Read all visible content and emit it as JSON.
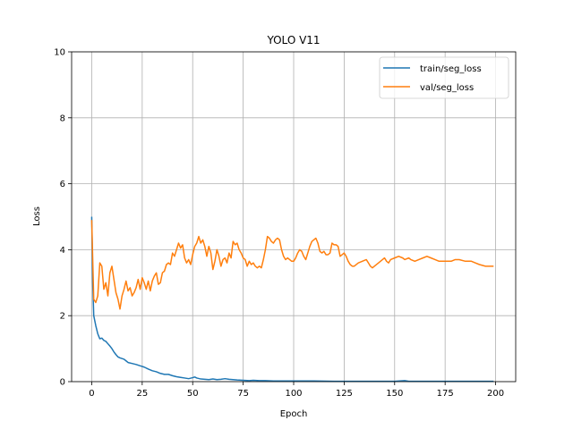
{
  "chart_data": {
    "type": "line",
    "title": "YOLO V11",
    "xlabel": "Epoch",
    "ylabel": "Loss",
    "xlim": [
      -9.95,
      209.95
    ],
    "ylim": [
      0,
      10
    ],
    "xticks": [
      0,
      25,
      50,
      75,
      100,
      125,
      150,
      175,
      200
    ],
    "yticks": [
      0,
      2,
      4,
      6,
      8,
      10
    ],
    "grid": true,
    "legend": "top-right",
    "series": [
      {
        "name": "train/seg_loss",
        "color": "#1f77b4",
        "points": [
          [
            0,
            5.0
          ],
          [
            0.5,
            3.0
          ],
          [
            1,
            2.0
          ],
          [
            2,
            1.7
          ],
          [
            3,
            1.45
          ],
          [
            4,
            1.3
          ],
          [
            5,
            1.32
          ],
          [
            6,
            1.25
          ],
          [
            7,
            1.22
          ],
          [
            8,
            1.15
          ],
          [
            9,
            1.08
          ],
          [
            10,
            1.0
          ],
          [
            11,
            0.9
          ],
          [
            12,
            0.82
          ],
          [
            13,
            0.75
          ],
          [
            14,
            0.72
          ],
          [
            15,
            0.7
          ],
          [
            16,
            0.68
          ],
          [
            17,
            0.63
          ],
          [
            18,
            0.58
          ],
          [
            20,
            0.55
          ],
          [
            22,
            0.52
          ],
          [
            24,
            0.48
          ],
          [
            26,
            0.44
          ],
          [
            28,
            0.38
          ],
          [
            30,
            0.33
          ],
          [
            32,
            0.3
          ],
          [
            34,
            0.25
          ],
          [
            36,
            0.22
          ],
          [
            38,
            0.22
          ],
          [
            40,
            0.18
          ],
          [
            42,
            0.15
          ],
          [
            44,
            0.13
          ],
          [
            46,
            0.11
          ],
          [
            48,
            0.09
          ],
          [
            50,
            0.12
          ],
          [
            51,
            0.14
          ],
          [
            52,
            0.11
          ],
          [
            54,
            0.08
          ],
          [
            56,
            0.07
          ],
          [
            58,
            0.06
          ],
          [
            60,
            0.08
          ],
          [
            62,
            0.06
          ],
          [
            64,
            0.07
          ],
          [
            66,
            0.09
          ],
          [
            68,
            0.07
          ],
          [
            70,
            0.06
          ],
          [
            72,
            0.05
          ],
          [
            75,
            0.04
          ],
          [
            78,
            0.03
          ],
          [
            80,
            0.04
          ],
          [
            83,
            0.03
          ],
          [
            86,
            0.03
          ],
          [
            90,
            0.02
          ],
          [
            95,
            0.02
          ],
          [
            100,
            0.02
          ],
          [
            110,
            0.02
          ],
          [
            120,
            0.01
          ],
          [
            130,
            0.01
          ],
          [
            140,
            0.01
          ],
          [
            150,
            0.01
          ],
          [
            155,
            0.03
          ],
          [
            157,
            0.01
          ],
          [
            165,
            0.01
          ],
          [
            175,
            0.01
          ],
          [
            185,
            0.01
          ],
          [
            195,
            0.01
          ],
          [
            199,
            0.01
          ]
        ]
      },
      {
        "name": "val/seg_loss",
        "color": "#ff7f0e",
        "points": [
          [
            0,
            4.9
          ],
          [
            1,
            2.5
          ],
          [
            2,
            2.4
          ],
          [
            3,
            2.6
          ],
          [
            4,
            3.6
          ],
          [
            5,
            3.5
          ],
          [
            6,
            2.8
          ],
          [
            7,
            3.0
          ],
          [
            8,
            2.6
          ],
          [
            9,
            3.3
          ],
          [
            10,
            3.5
          ],
          [
            11,
            3.1
          ],
          [
            12,
            2.7
          ],
          [
            13,
            2.5
          ],
          [
            14,
            2.2
          ],
          [
            15,
            2.6
          ],
          [
            16,
            2.8
          ],
          [
            17,
            3.05
          ],
          [
            18,
            2.75
          ],
          [
            19,
            2.85
          ],
          [
            20,
            2.6
          ],
          [
            21,
            2.7
          ],
          [
            22,
            2.85
          ],
          [
            23,
            3.1
          ],
          [
            24,
            2.8
          ],
          [
            25,
            3.15
          ],
          [
            26,
            3.0
          ],
          [
            27,
            2.8
          ],
          [
            28,
            3.05
          ],
          [
            29,
            2.75
          ],
          [
            30,
            3.05
          ],
          [
            31,
            3.2
          ],
          [
            32,
            3.3
          ],
          [
            33,
            2.95
          ],
          [
            34,
            3.0
          ],
          [
            35,
            3.3
          ],
          [
            36,
            3.35
          ],
          [
            37,
            3.55
          ],
          [
            38,
            3.6
          ],
          [
            39,
            3.55
          ],
          [
            40,
            3.9
          ],
          [
            41,
            3.8
          ],
          [
            42,
            4.0
          ],
          [
            43,
            4.2
          ],
          [
            44,
            4.05
          ],
          [
            45,
            4.15
          ],
          [
            46,
            3.75
          ],
          [
            47,
            3.6
          ],
          [
            48,
            3.7
          ],
          [
            49,
            3.55
          ],
          [
            50,
            3.85
          ],
          [
            51,
            4.1
          ],
          [
            52,
            4.2
          ],
          [
            53,
            4.4
          ],
          [
            54,
            4.2
          ],
          [
            55,
            4.3
          ],
          [
            56,
            4.1
          ],
          [
            57,
            3.8
          ],
          [
            58,
            4.1
          ],
          [
            59,
            3.9
          ],
          [
            60,
            3.4
          ],
          [
            61,
            3.65
          ],
          [
            62,
            4.0
          ],
          [
            63,
            3.8
          ],
          [
            64,
            3.5
          ],
          [
            65,
            3.7
          ],
          [
            66,
            3.75
          ],
          [
            67,
            3.6
          ],
          [
            68,
            3.9
          ],
          [
            69,
            3.75
          ],
          [
            70,
            4.25
          ],
          [
            71,
            4.15
          ],
          [
            72,
            4.2
          ],
          [
            73,
            4.0
          ],
          [
            74,
            3.9
          ],
          [
            75,
            3.75
          ],
          [
            76,
            3.7
          ],
          [
            77,
            3.5
          ],
          [
            78,
            3.65
          ],
          [
            79,
            3.55
          ],
          [
            80,
            3.6
          ],
          [
            81,
            3.5
          ],
          [
            82,
            3.45
          ],
          [
            83,
            3.5
          ],
          [
            84,
            3.45
          ],
          [
            85,
            3.7
          ],
          [
            86,
            4.0
          ],
          [
            87,
            4.4
          ],
          [
            88,
            4.35
          ],
          [
            89,
            4.25
          ],
          [
            90,
            4.2
          ],
          [
            91,
            4.3
          ],
          [
            92,
            4.35
          ],
          [
            93,
            4.3
          ],
          [
            94,
            4.0
          ],
          [
            95,
            3.8
          ],
          [
            96,
            3.7
          ],
          [
            97,
            3.75
          ],
          [
            98,
            3.7
          ],
          [
            99,
            3.65
          ],
          [
            100,
            3.65
          ],
          [
            101,
            3.75
          ],
          [
            102,
            3.9
          ],
          [
            103,
            4.0
          ],
          [
            104,
            3.95
          ],
          [
            105,
            3.8
          ],
          [
            106,
            3.7
          ],
          [
            107,
            3.9
          ],
          [
            108,
            4.1
          ],
          [
            109,
            4.25
          ],
          [
            110,
            4.3
          ],
          [
            111,
            4.35
          ],
          [
            112,
            4.2
          ],
          [
            113,
            3.95
          ],
          [
            114,
            3.9
          ],
          [
            115,
            3.95
          ],
          [
            116,
            3.85
          ],
          [
            117,
            3.85
          ],
          [
            118,
            3.9
          ],
          [
            119,
            4.2
          ],
          [
            120,
            4.15
          ],
          [
            121,
            4.15
          ],
          [
            122,
            4.1
          ],
          [
            123,
            3.8
          ],
          [
            124,
            3.85
          ],
          [
            125,
            3.9
          ],
          [
            126,
            3.8
          ],
          [
            127,
            3.65
          ],
          [
            128,
            3.55
          ],
          [
            129,
            3.5
          ],
          [
            130,
            3.5
          ],
          [
            132,
            3.6
          ],
          [
            134,
            3.65
          ],
          [
            136,
            3.7
          ],
          [
            137,
            3.6
          ],
          [
            138,
            3.5
          ],
          [
            139,
            3.45
          ],
          [
            140,
            3.5
          ],
          [
            142,
            3.6
          ],
          [
            144,
            3.7
          ],
          [
            145,
            3.75
          ],
          [
            146,
            3.65
          ],
          [
            147,
            3.6
          ],
          [
            148,
            3.7
          ],
          [
            150,
            3.75
          ],
          [
            152,
            3.8
          ],
          [
            154,
            3.75
          ],
          [
            155,
            3.7
          ],
          [
            157,
            3.75
          ],
          [
            158,
            3.7
          ],
          [
            160,
            3.65
          ],
          [
            162,
            3.7
          ],
          [
            164,
            3.75
          ],
          [
            166,
            3.8
          ],
          [
            168,
            3.75
          ],
          [
            170,
            3.7
          ],
          [
            172,
            3.65
          ],
          [
            175,
            3.65
          ],
          [
            178,
            3.65
          ],
          [
            180,
            3.7
          ],
          [
            182,
            3.7
          ],
          [
            185,
            3.65
          ],
          [
            188,
            3.65
          ],
          [
            190,
            3.6
          ],
          [
            192,
            3.55
          ],
          [
            195,
            3.5
          ],
          [
            197,
            3.5
          ],
          [
            199,
            3.5
          ]
        ]
      }
    ]
  }
}
